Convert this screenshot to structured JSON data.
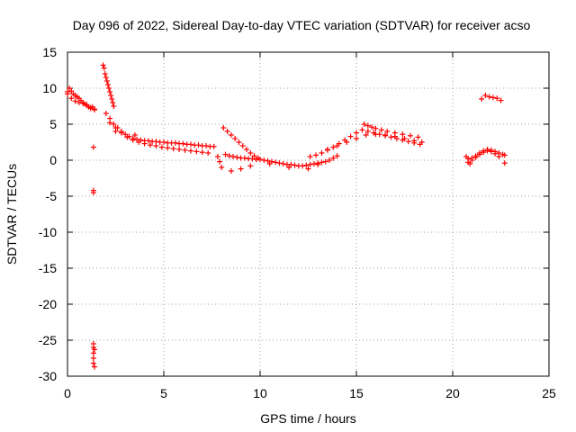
{
  "chart_data": {
    "type": "scatter",
    "title": "Day 096 of 2022, Sidereal Day-to-day VTEC variation (SDTVAR) for receiver acso",
    "xlabel": "GPS time / hours",
    "ylabel": "SDTVAR / TECUs",
    "xlim": [
      0,
      25
    ],
    "ylim": [
      -30,
      15
    ],
    "xticks": [
      0,
      5,
      10,
      15,
      20,
      25
    ],
    "yticks": [
      15,
      10,
      5,
      0,
      -5,
      -10,
      -15,
      -20,
      -25,
      -30
    ],
    "grid": true,
    "marker": "+",
    "color": "#ff0000",
    "series": [
      {
        "name": "SDTVAR",
        "x": [
          0.0,
          0.1,
          0.2,
          0.3,
          0.4,
          0.5,
          0.6,
          0.7,
          0.8,
          0.9,
          1.0,
          1.1,
          1.2,
          1.3,
          1.4,
          0.0,
          0.2,
          0.4,
          0.6,
          0.8,
          1.0,
          1.2,
          1.4,
          1.35,
          1.35,
          1.35,
          1.35,
          1.35,
          1.35,
          1.35,
          1.35,
          1.4,
          1.4,
          1.85,
          1.9,
          1.95,
          2.0,
          2.05,
          2.1,
          2.15,
          2.2,
          2.25,
          2.3,
          2.35,
          2.4,
          2.0,
          2.2,
          2.4,
          2.6,
          2.8,
          3.0,
          3.2,
          3.4,
          3.6,
          3.8,
          4.0,
          4.2,
          4.4,
          4.6,
          4.8,
          5.0,
          5.2,
          5.4,
          5.6,
          5.8,
          6.0,
          6.2,
          6.4,
          6.6,
          6.8,
          7.0,
          7.2,
          7.4,
          7.6,
          2.2,
          2.5,
          2.8,
          3.1,
          3.4,
          3.7,
          4.0,
          4.3,
          4.6,
          4.9,
          5.2,
          5.5,
          5.8,
          6.1,
          6.4,
          6.7,
          7.0,
          7.3,
          2.5,
          3.5,
          7.8,
          7.9,
          8.0,
          8.2,
          8.4,
          8.6,
          8.8,
          9.0,
          9.2,
          9.4,
          9.6,
          9.8,
          10.0,
          10.2,
          10.4,
          10.6,
          10.8,
          11.0,
          11.2,
          11.4,
          11.6,
          11.8,
          12.0,
          12.2,
          12.4,
          12.6,
          12.8,
          13.0,
          13.2,
          13.4,
          13.6,
          13.8,
          14.0,
          8.1,
          8.3,
          8.5,
          8.7,
          8.9,
          9.1,
          9.3,
          9.5,
          9.7,
          9.9,
          8.5,
          9.0,
          9.5,
          10.5,
          11.5,
          12.5,
          13.0,
          12.6,
          12.9,
          13.2,
          13.5,
          13.8,
          14.1,
          14.4,
          14.7,
          15.0,
          15.3,
          15.6,
          15.9,
          16.2,
          16.5,
          16.8,
          17.1,
          17.4,
          17.7,
          18.0,
          18.3,
          13.5,
          14.0,
          14.5,
          15.0,
          15.5,
          16.0,
          16.5,
          17.0,
          17.5,
          18.0,
          18.4,
          15.4,
          15.6,
          15.8,
          16.0,
          16.3,
          16.6,
          17.0,
          17.4,
          17.8,
          18.2,
          20.7,
          20.8,
          20.9,
          21.0,
          21.2,
          21.4,
          21.6,
          21.8,
          22.0,
          22.2,
          22.4,
          22.6,
          20.8,
          21.0,
          21.2,
          21.4,
          21.6,
          21.8,
          22.0,
          22.2,
          22.4,
          21.5,
          21.7,
          21.9,
          22.1,
          22.3,
          22.5,
          22.7,
          22.7
        ],
        "y": [
          9.5,
          10.0,
          9.6,
          9.2,
          9.0,
          8.8,
          8.6,
          8.3,
          8.0,
          7.8,
          7.6,
          7.4,
          7.2,
          7.4,
          7.0,
          9.2,
          8.6,
          8.2,
          8.0,
          7.9,
          7.7,
          7.3,
          7.1,
          1.8,
          -4.2,
          -4.5,
          -25.5,
          -26.0,
          -26.8,
          -27.5,
          -28.2,
          -28.7,
          -26.3,
          13.2,
          12.8,
          12.0,
          11.5,
          11.0,
          10.5,
          10.0,
          9.5,
          9.0,
          8.5,
          8.0,
          7.5,
          6.5,
          5.8,
          5.0,
          4.5,
          4.0,
          3.6,
          3.3,
          3.0,
          2.9,
          2.8,
          2.7,
          2.7,
          2.6,
          2.6,
          2.5,
          2.5,
          2.4,
          2.4,
          2.4,
          2.3,
          2.3,
          2.2,
          2.2,
          2.1,
          2.1,
          2.0,
          2.0,
          1.9,
          1.9,
          5.2,
          4.5,
          3.8,
          3.2,
          2.8,
          2.5,
          2.3,
          2.1,
          2.0,
          1.8,
          1.7,
          1.6,
          1.5,
          1.4,
          1.3,
          1.2,
          1.1,
          1.0,
          4.0,
          3.5,
          0.5,
          -0.2,
          -1.0,
          0.8,
          0.6,
          0.5,
          0.4,
          0.3,
          0.3,
          0.2,
          0.2,
          0.1,
          0.1,
          0.0,
          -0.1,
          -0.2,
          -0.3,
          -0.4,
          -0.5,
          -0.6,
          -0.6,
          -0.7,
          -0.8,
          -0.8,
          -0.7,
          -0.6,
          -0.5,
          -0.4,
          -0.3,
          -0.2,
          0.0,
          0.3,
          0.6,
          4.5,
          4.0,
          3.5,
          3.0,
          2.5,
          2.0,
          1.5,
          1.0,
          0.6,
          0.3,
          -1.5,
          -1.2,
          -0.8,
          -0.5,
          -1.0,
          -1.2,
          -0.6,
          0.5,
          0.7,
          1.0,
          1.4,
          1.8,
          2.3,
          2.8,
          3.3,
          3.8,
          4.2,
          4.0,
          3.8,
          3.6,
          3.4,
          3.2,
          3.0,
          2.8,
          2.6,
          2.4,
          2.2,
          1.5,
          2.0,
          2.5,
          3.0,
          3.5,
          3.6,
          3.5,
          3.3,
          3.0,
          2.7,
          2.5,
          5.0,
          4.8,
          4.6,
          4.4,
          4.2,
          4.0,
          3.8,
          3.6,
          3.4,
          3.2,
          0.5,
          0.2,
          -0.5,
          0.3,
          0.6,
          1.0,
          1.3,
          1.5,
          1.4,
          1.2,
          1.0,
          0.8,
          -0.3,
          0.0,
          0.4,
          0.8,
          1.1,
          1.3,
          1.2,
          0.9,
          0.5,
          8.5,
          9.0,
          8.8,
          8.7,
          8.6,
          8.3,
          0.7,
          -0.4
        ]
      }
    ]
  }
}
